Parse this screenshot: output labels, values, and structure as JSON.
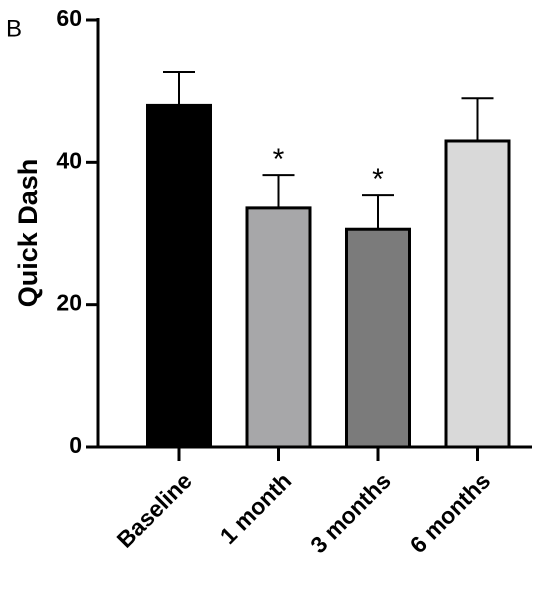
{
  "chart_data": {
    "type": "bar",
    "panel_label": "B",
    "ylabel": "Quick Dash",
    "categories": [
      "Baseline",
      "1 month",
      "3 months",
      "6 months"
    ],
    "values": [
      48,
      33.6,
      30.6,
      43
    ],
    "errors": [
      4.7,
      4.6,
      4.8,
      6
    ],
    "colors": [
      "#000000",
      "#a7a7a9",
      "#7b7b7b",
      "#d9d9d9"
    ],
    "annotations": [
      {
        "category": "1 month",
        "text": "*"
      },
      {
        "category": "3 months",
        "text": "*"
      }
    ],
    "ylim": [
      0,
      60
    ],
    "yticks": [
      0,
      20,
      40,
      60
    ],
    "grid": false
  }
}
